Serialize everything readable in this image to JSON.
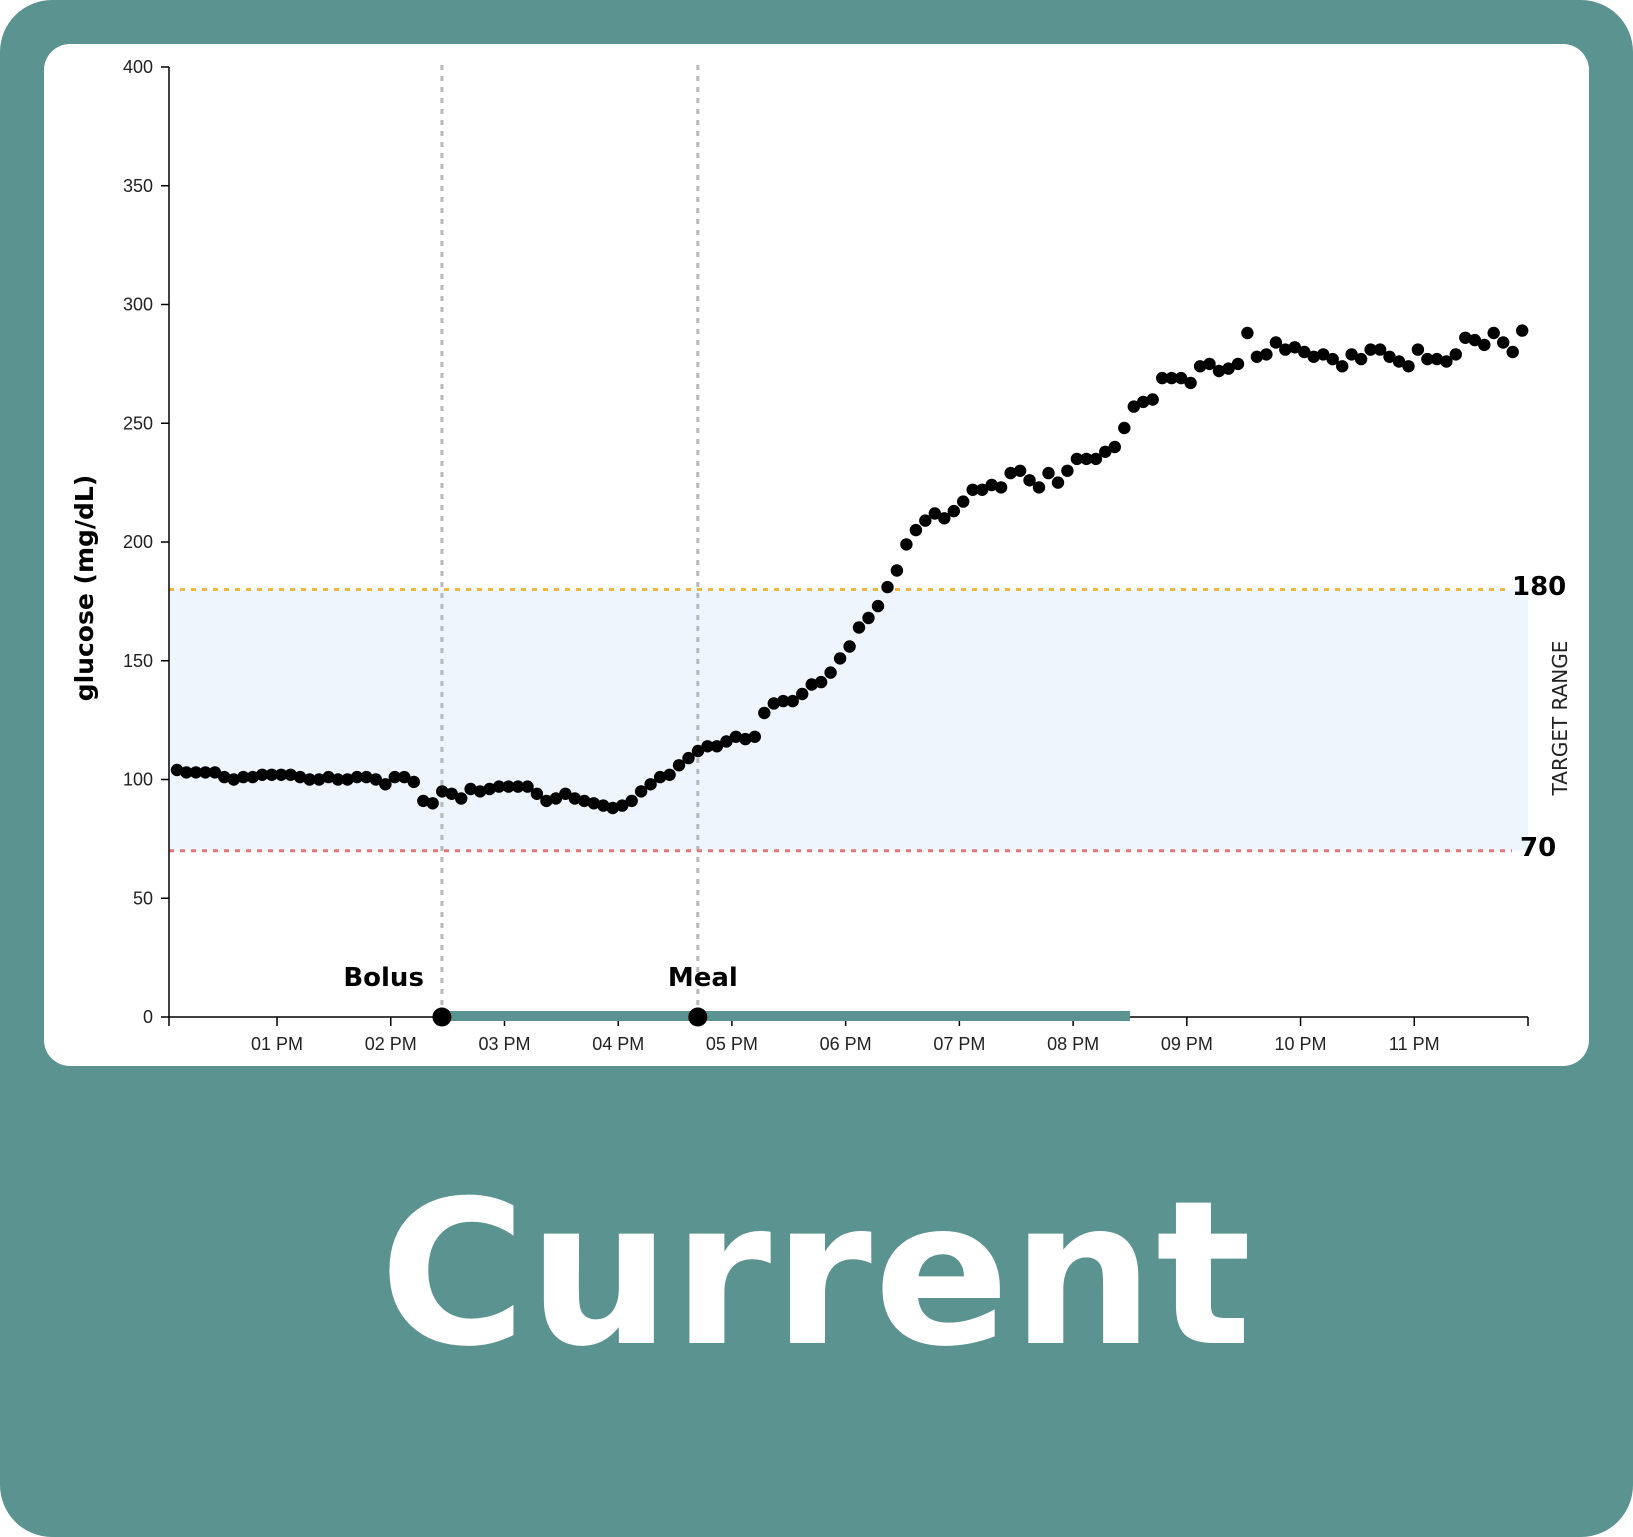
{
  "caption": "Current",
  "colors": {
    "frame": "#5a938f",
    "card": "#ffffff",
    "target_band": "#eef5fc",
    "upper_line": "#f0b642",
    "lower_line": "#e5767a",
    "event_line": "#b8b8b8",
    "timeline_bar": "#5a938f",
    "point": "#000000"
  },
  "chart_data": {
    "type": "scatter",
    "xlabel": "",
    "ylabel": "glucose (mg/dL)",
    "ylim": [
      0,
      400
    ],
    "yticks": [
      0,
      50,
      100,
      150,
      200,
      250,
      300,
      350,
      400
    ],
    "xlim_hours": [
      12.05,
      24.0
    ],
    "xticks": [
      {
        "hour": 13,
        "label": "01 PM"
      },
      {
        "hour": 14,
        "label": "02 PM"
      },
      {
        "hour": 15,
        "label": "03 PM"
      },
      {
        "hour": 16,
        "label": "04 PM"
      },
      {
        "hour": 17,
        "label": "05 PM"
      },
      {
        "hour": 18,
        "label": "06 PM"
      },
      {
        "hour": 19,
        "label": "07 PM"
      },
      {
        "hour": 20,
        "label": "08 PM"
      },
      {
        "hour": 21,
        "label": "09 PM"
      },
      {
        "hour": 22,
        "label": "10 PM"
      },
      {
        "hour": 23,
        "label": "11 PM"
      }
    ],
    "target_range": {
      "low": 70,
      "high": 180,
      "label": "TARGET RANGE",
      "low_label": "70",
      "high_label": "180"
    },
    "events": [
      {
        "name": "Bolus",
        "hour": 14.45
      },
      {
        "name": "Meal",
        "hour": 16.7
      }
    ],
    "timeline_bar": {
      "start_hour": 14.45,
      "end_hour": 20.5
    },
    "grid": false,
    "legend": "none",
    "x_start_hour": 12.12,
    "x_step_hours": 0.0833,
    "values": [
      104,
      103,
      103,
      103,
      103,
      101,
      100,
      101,
      101,
      102,
      102,
      102,
      102,
      101,
      100,
      100,
      101,
      100,
      100,
      101,
      101,
      100,
      98,
      101,
      101,
      99,
      91,
      90,
      95,
      94,
      92,
      96,
      95,
      96,
      97,
      97,
      97,
      97,
      94,
      91,
      92,
      94,
      92,
      91,
      90,
      89,
      88,
      89,
      91,
      95,
      98,
      101,
      102,
      106,
      109,
      112,
      114,
      114,
      116,
      118,
      117,
      118,
      128,
      132,
      133,
      133,
      136,
      140,
      141,
      145,
      151,
      156,
      164,
      168,
      173,
      181,
      188,
      199,
      205,
      209,
      212,
      210,
      213,
      217,
      222,
      222,
      224,
      223,
      229,
      230,
      226,
      223,
      229,
      225,
      230,
      235,
      235,
      235,
      238,
      240,
      248,
      257,
      259,
      260,
      269,
      269,
      269,
      267,
      274,
      275,
      272,
      273,
      275,
      288,
      278,
      279,
      284,
      281,
      282,
      280,
      278,
      279,
      277,
      274,
      279,
      277,
      281,
      281,
      278,
      276,
      274,
      281,
      277,
      277,
      276,
      279,
      286,
      285,
      283,
      288,
      284,
      280,
      289
    ]
  }
}
